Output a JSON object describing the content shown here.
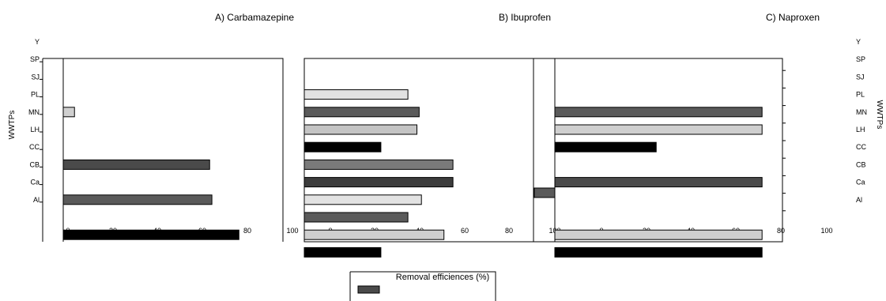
{
  "chart_data": {
    "type": "bar",
    "orientation": "horizontal",
    "xlabel": "Removal efficiences (%)",
    "ylabel": "WWTPs",
    "categories": [
      "Y",
      "SP",
      "SJ",
      "PL",
      "MN",
      "LH",
      "CC",
      "CB",
      "Ca",
      "Al"
    ],
    "x_ticks": [
      "0",
      "20",
      "40",
      "60",
      "80",
      "100"
    ],
    "xlim": [
      0,
      100
    ],
    "panels": [
      {
        "title": "A) Carbamazepine",
        "bars": [
          {
            "slot": 4,
            "value": 5,
            "color": "#cfcfcf"
          },
          {
            "slot": 7,
            "value": 65,
            "color": "#4a4a4a"
          },
          {
            "slot": 9,
            "value": 66,
            "color": "#5a5a5a"
          },
          {
            "slot": 11,
            "value": 78,
            "color": "#000000"
          }
        ]
      },
      {
        "title": "B) Ibuprofen",
        "bars": [
          {
            "slot": 3,
            "value": 46,
            "color": "#e2e2e2"
          },
          {
            "slot": 4,
            "value": 51,
            "color": "#5a5a5a"
          },
          {
            "slot": 5,
            "value": 50,
            "color": "#c4c4c4"
          },
          {
            "slot": 6,
            "value": 34,
            "color": "#000000"
          },
          {
            "slot": 7,
            "value": 66,
            "color": "#7a7a7a"
          },
          {
            "slot": 8,
            "value": 66,
            "color": "#3c3c3c"
          },
          {
            "slot": 9,
            "value": 52,
            "color": "#e2e2e2"
          },
          {
            "slot": 10,
            "value": 46,
            "color": "#5a5a5a"
          },
          {
            "slot": 11,
            "value": 62,
            "color": "#cfcfcf"
          },
          {
            "slot": 12,
            "value": 34,
            "color": "#000000"
          }
        ]
      },
      {
        "title": "C) Naproxen",
        "bars": [
          {
            "slot": 4,
            "value": 92,
            "color": "#5a5a5a"
          },
          {
            "slot": 5,
            "value": 92,
            "color": "#cfcfcf"
          },
          {
            "slot": 6,
            "value": 45,
            "color": "#000000"
          },
          {
            "slot": 8,
            "value": 92,
            "color": "#4a4a4a"
          },
          {
            "slot": 11,
            "value": 92,
            "color": "#cfcfcf"
          },
          {
            "slot": 12,
            "value": 92,
            "color": "#000000"
          }
        ]
      }
    ],
    "legend": {
      "placement": "bottom-center",
      "swatch_color": "#4a4a4a"
    }
  }
}
